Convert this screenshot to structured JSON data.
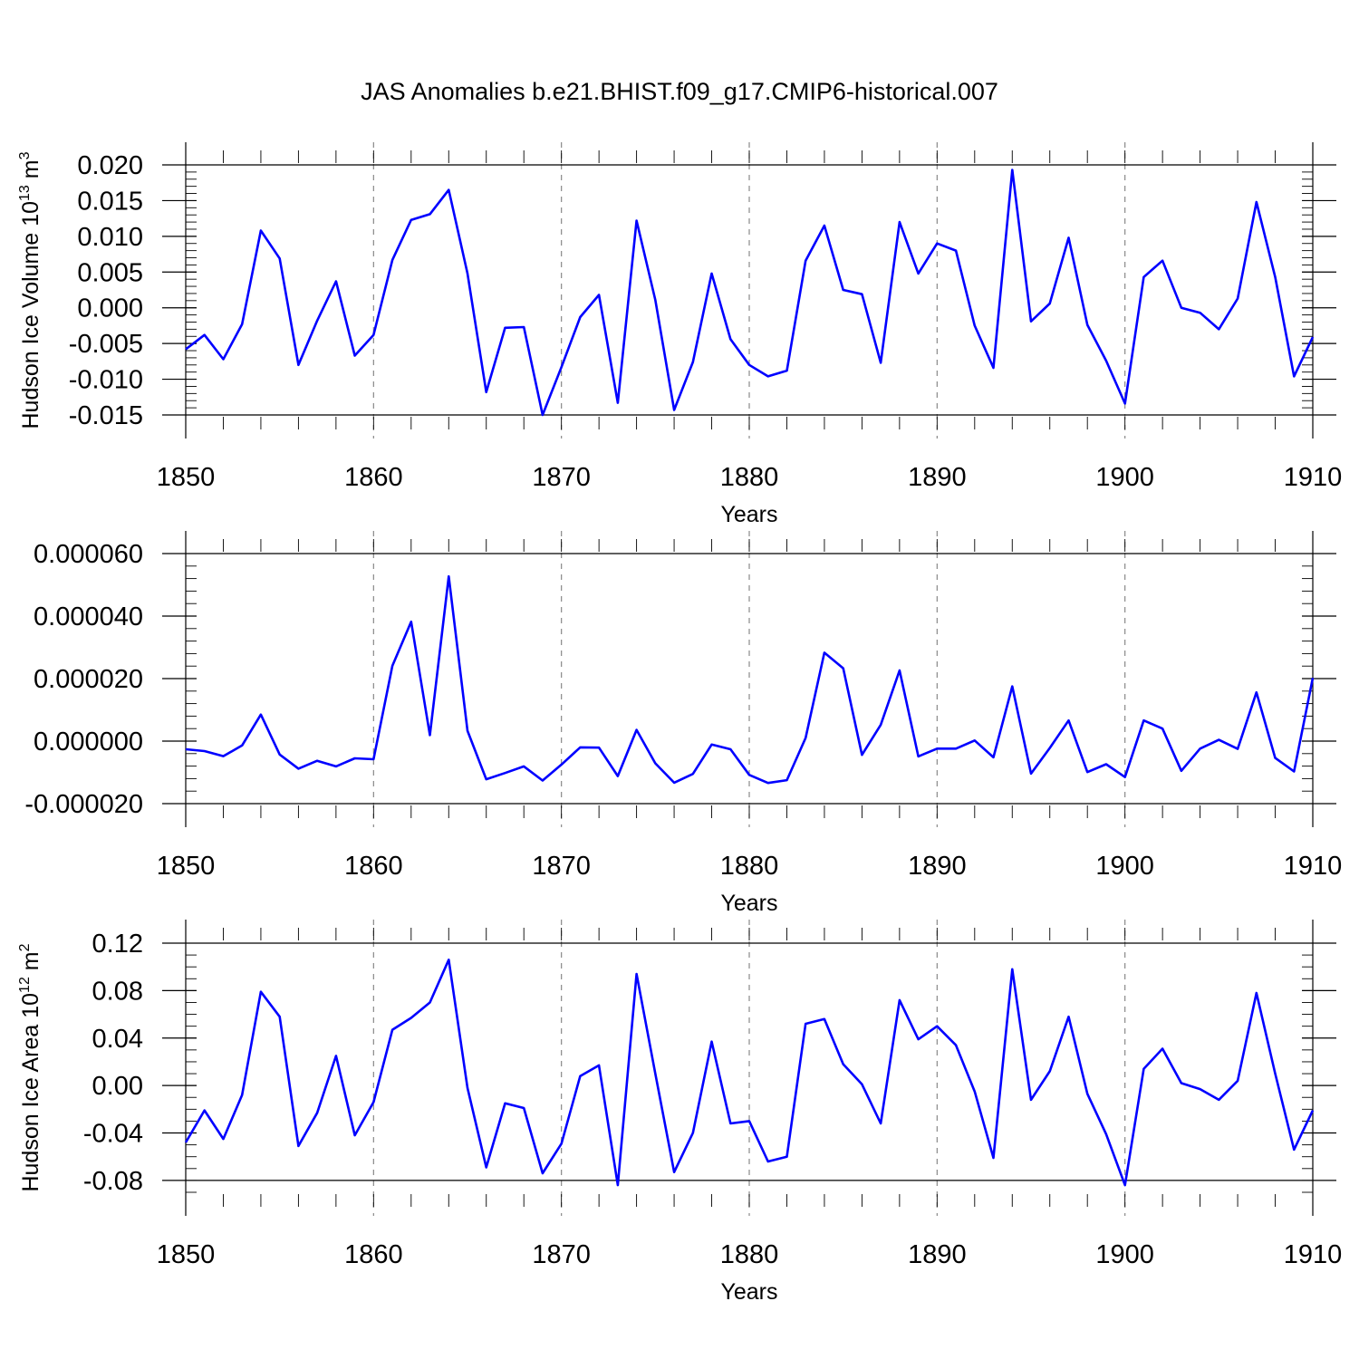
{
  "title": "JAS Anomalies b.e21.BHIST.f09_g17.CMIP6-historical.007",
  "colors": {
    "series": "#0000ff",
    "axis": "#000000",
    "grid": "#888888"
  },
  "chart_data": [
    {
      "type": "line",
      "ylabel": "Hudson Ice Volume 10",
      "ylabel_exp": "13",
      "ylabel_unit": " m",
      "ylabel_unit_exp": "3",
      "xlabel": "Years",
      "xlim": [
        1850,
        1910
      ],
      "ylim": [
        -0.015,
        0.02
      ],
      "xticks": [
        1850,
        1860,
        1870,
        1880,
        1890,
        1900,
        1910
      ],
      "yticks": [
        -0.015,
        -0.01,
        -0.005,
        0.0,
        0.005,
        0.01,
        0.015,
        0.02
      ],
      "ytick_labels": [
        "-0.015",
        "-0.010",
        "-0.005",
        "0.000",
        "0.005",
        "0.010",
        "0.015",
        "0.020"
      ],
      "ymajor_step": 0.005,
      "yminor_step": 0.001,
      "grid": "vertical dashed at major x ticks",
      "x_start": 1850,
      "values": [
        -0.0058,
        -0.0038,
        -0.0072,
        -0.0023,
        0.0108,
        0.0069,
        -0.008,
        -0.0018,
        0.0037,
        -0.0067,
        -0.0038,
        0.0067,
        0.0123,
        0.0131,
        0.0165,
        0.0048,
        -0.0118,
        -0.0028,
        -0.0027,
        -0.015,
        -0.0083,
        -0.0013,
        0.0018,
        -0.0133,
        0.0122,
        0.0011,
        -0.0143,
        -0.0076,
        0.0048,
        -0.0044,
        -0.008,
        -0.0096,
        -0.0088,
        0.0066,
        0.0115,
        0.0025,
        0.0019,
        -0.0077,
        0.012,
        0.0048,
        0.009,
        0.008,
        -0.0025,
        -0.0084,
        0.0193,
        -0.0019,
        0.0006,
        0.0098,
        -0.0024,
        -0.0074,
        -0.0134,
        0.0043,
        0.0066,
        0.0,
        -0.0007,
        -0.003,
        0.0013,
        0.0148,
        0.0043,
        -0.0096,
        -0.0041
      ]
    },
    {
      "type": "line",
      "ylabel": "",
      "xlabel": "Years",
      "xlim": [
        1850,
        1910
      ],
      "ylim": [
        -2e-05,
        6e-05
      ],
      "xticks": [
        1850,
        1860,
        1870,
        1880,
        1890,
        1900,
        1910
      ],
      "yticks": [
        -2e-05,
        0.0,
        2e-05,
        4e-05,
        6e-05
      ],
      "ytick_labels": [
        "-0.000020",
        "0.000000",
        "0.000020",
        "0.000040",
        "0.000060"
      ],
      "ymajor_step": 2e-05,
      "yminor_step": 4e-06,
      "grid": "vertical dashed at major x ticks",
      "x_start": 1850,
      "values": [
        -2.6e-06,
        -3.2e-06,
        -4.8e-06,
        -1.4e-06,
        8.5e-06,
        -4.3e-06,
        -8.8e-06,
        -6.3e-06,
        -8.1e-06,
        -5.5e-06,
        -5.8e-06,
        2.41e-05,
        3.82e-05,
        1.9e-06,
        5.27e-05,
        3.3e-06,
        -1.22e-05,
        -1.02e-05,
        -8.1e-06,
        -1.26e-05,
        -7.5e-06,
        -2e-06,
        -2.1e-06,
        -1.12e-05,
        3.6e-06,
        -7.1e-06,
        -1.33e-05,
        -1.05e-05,
        -1.1e-06,
        -2.6e-06,
        -1.08e-05,
        -1.34e-05,
        -1.25e-05,
        1e-06,
        2.83e-05,
        2.33e-05,
        -4.4e-06,
        5.2e-06,
        2.26e-05,
        -4.9e-06,
        -2.4e-06,
        -2.4e-06,
        2e-07,
        -5.2e-06,
        1.75e-05,
        -1.04e-05,
        -2.2e-06,
        6.6e-06,
        -9.9e-06,
        -7.4e-06,
        -1.15e-05,
        6.6e-06,
        4e-06,
        -9.5e-06,
        -2.4e-06,
        4e-07,
        -2.5e-06,
        1.56e-05,
        -5.4e-06,
        -9.7e-06,
        2.02e-05
      ]
    },
    {
      "type": "line",
      "ylabel": "Hudson Ice Area 10",
      "ylabel_exp": "12",
      "ylabel_unit": " m",
      "ylabel_unit_exp": "2",
      "xlabel": "Years",
      "xlim": [
        1850,
        1910
      ],
      "ylim": [
        -0.09,
        0.12
      ],
      "xticks": [
        1850,
        1860,
        1870,
        1880,
        1890,
        1900,
        1910
      ],
      "yticks": [
        -0.08,
        -0.04,
        0.0,
        0.04,
        0.08,
        0.12
      ],
      "ytick_labels": [
        "-0.08",
        "-0.04",
        "0.00",
        "0.04",
        "0.08",
        "0.12"
      ],
      "ymajor_step": 0.04,
      "yminor_step": 0.01,
      "grid": "vertical dashed at major x ticks",
      "x_start": 1850,
      "values": [
        -0.048,
        -0.021,
        -0.045,
        -0.008,
        0.079,
        0.058,
        -0.051,
        -0.023,
        0.025,
        -0.042,
        -0.014,
        0.047,
        0.057,
        0.07,
        0.106,
        -0.002,
        -0.069,
        -0.015,
        -0.019,
        -0.074,
        -0.049,
        0.008,
        0.017,
        -0.084,
        0.094,
        0.01,
        -0.073,
        -0.04,
        0.037,
        -0.032,
        -0.03,
        -0.064,
        -0.06,
        0.052,
        0.056,
        0.018,
        0.001,
        -0.032,
        0.072,
        0.039,
        0.05,
        0.034,
        -0.005,
        -0.061,
        0.098,
        -0.012,
        0.012,
        0.058,
        -0.007,
        -0.041,
        -0.084,
        0.014,
        0.031,
        0.002,
        -0.003,
        -0.012,
        0.004,
        0.078,
        0.01,
        -0.054,
        -0.021
      ]
    }
  ]
}
